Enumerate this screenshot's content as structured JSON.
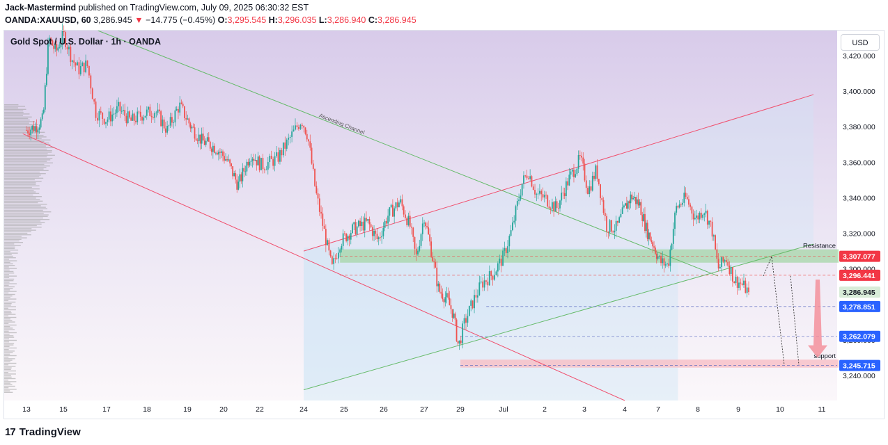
{
  "header": {
    "author": "Jack-Mastermind",
    "published": "published on TradingView.com, July 09, 2025 06:30:32 EST",
    "symbol": "OANDA:XAUUSD, 60",
    "last": "3,286.945",
    "change_arrow": "▼",
    "change": "−14.775 (−0.45%)",
    "o_label": "O:",
    "o": "3,295.545",
    "h_label": "H:",
    "h": "3,296.035",
    "l_label": "L:",
    "l": "3,286.940",
    "c_label": "C:",
    "c": "3,286.945"
  },
  "chart_title": "Gold Spot / U.S. Dollar · 1h · OANDA",
  "currency_button": "USD",
  "footer": {
    "logo_mark": "17",
    "brand": "TradingView"
  },
  "colors": {
    "up": "#26a69a",
    "down": "#ef5350",
    "resistance_zone": "#a5d6a7",
    "support_zone": "#f8bbc2",
    "red_line": "#f0506e",
    "green_line": "#66bb6a",
    "price_tag_red": "#f23645",
    "price_tag_blue": "#2962ff",
    "purple_bg": "#ddd3ef"
  },
  "chart_data": {
    "type": "candlestick",
    "title": "Gold Spot / U.S. Dollar · 1h · OANDA",
    "y_axis": {
      "ticks": [
        3240,
        3260,
        3280,
        3300,
        3320,
        3340,
        3360,
        3380,
        3400,
        3420
      ],
      "tick_labels": [
        "3,240.000",
        "3,260.000",
        "3,280.000",
        "3,300.000",
        "3,320.000",
        "3,340.000",
        "3,360.000",
        "3,380.000",
        "3,400.000",
        "3,420.000"
      ],
      "range": [
        3226,
        3434
      ]
    },
    "x_axis": {
      "labels": [
        "13",
        "15",
        "17",
        "18",
        "19",
        "20",
        "22",
        "24",
        "25",
        "26",
        "27",
        "29",
        "Jul",
        "2",
        "3",
        "4",
        "7",
        "8",
        "9",
        "10",
        "11"
      ],
      "positions": [
        0,
        1,
        2,
        3,
        4,
        5,
        6,
        7,
        8,
        9,
        10,
        11,
        12,
        13,
        14,
        15,
        16,
        17,
        18,
        19,
        20
      ]
    },
    "price_path": [
      [
        0,
        3378
      ],
      [
        0.25,
        3380
      ],
      [
        0.45,
        3384
      ],
      [
        0.6,
        3430
      ],
      [
        0.8,
        3422
      ],
      [
        1.0,
        3432
      ],
      [
        1.2,
        3418
      ],
      [
        1.35,
        3412
      ],
      [
        1.55,
        3415
      ],
      [
        1.75,
        3388
      ],
      [
        2.0,
        3384
      ],
      [
        2.3,
        3390
      ],
      [
        2.6,
        3383
      ],
      [
        2.9,
        3387
      ],
      [
        3.2,
        3389
      ],
      [
        3.5,
        3378
      ],
      [
        3.8,
        3392
      ],
      [
        4.1,
        3380
      ],
      [
        4.4,
        3372
      ],
      [
        4.8,
        3368
      ],
      [
        5.1,
        3361
      ],
      [
        5.4,
        3347
      ],
      [
        5.75,
        3365
      ],
      [
        6.05,
        3358
      ],
      [
        6.4,
        3362
      ],
      [
        6.75,
        3376
      ],
      [
        6.95,
        3384
      ],
      [
        7.1,
        3375
      ],
      [
        7.3,
        3343
      ],
      [
        7.5,
        3322
      ],
      [
        7.7,
        3300
      ],
      [
        7.9,
        3315
      ],
      [
        8.2,
        3322
      ],
      [
        8.6,
        3326
      ],
      [
        8.85,
        3316
      ],
      [
        9.1,
        3330
      ],
      [
        9.4,
        3338
      ],
      [
        9.65,
        3324
      ],
      [
        9.8,
        3306
      ],
      [
        10.0,
        3330
      ],
      [
        10.2,
        3310
      ],
      [
        10.4,
        3288
      ],
      [
        10.6,
        3284
      ],
      [
        10.8,
        3275
      ],
      [
        10.95,
        3256
      ],
      [
        11.1,
        3270
      ],
      [
        11.3,
        3282
      ],
      [
        11.5,
        3292
      ],
      [
        11.75,
        3297
      ],
      [
        12.0,
        3307
      ],
      [
        12.2,
        3322
      ],
      [
        12.45,
        3348
      ],
      [
        12.6,
        3355
      ],
      [
        12.8,
        3342
      ],
      [
        13.0,
        3340
      ],
      [
        13.3,
        3334
      ],
      [
        13.6,
        3350
      ],
      [
        13.9,
        3362
      ],
      [
        14.1,
        3344
      ],
      [
        14.3,
        3356
      ],
      [
        14.55,
        3324
      ],
      [
        14.8,
        3323
      ],
      [
        15.0,
        3334
      ],
      [
        15.2,
        3341
      ],
      [
        15.45,
        3336
      ],
      [
        15.65,
        3322
      ],
      [
        15.85,
        3314
      ],
      [
        16.05,
        3304
      ],
      [
        16.25,
        3302
      ],
      [
        16.45,
        3334
      ],
      [
        16.7,
        3340
      ],
      [
        16.95,
        3328
      ],
      [
        17.15,
        3334
      ],
      [
        17.35,
        3322
      ],
      [
        17.5,
        3300
      ],
      [
        17.7,
        3306
      ],
      [
        17.9,
        3294
      ],
      [
        18.05,
        3292
      ],
      [
        18.25,
        3286.945
      ]
    ],
    "candle_count": 470,
    "levels": [
      {
        "label": "3,307.077",
        "value": 3307.077,
        "tag_color": "red"
      },
      {
        "label": "3,300.000",
        "value": 3300,
        "tag_color": "none"
      },
      {
        "label": "3,296.441",
        "value": 3296.441,
        "tag_color": "red"
      },
      {
        "label": "3,286.945",
        "value": 3286.945,
        "tag_color": "green"
      },
      {
        "label": "3,278.851",
        "value": 3278.851,
        "tag_color": "blue"
      },
      {
        "label": "3,262.079",
        "value": 3262.079,
        "tag_color": "blue"
      },
      {
        "label": "3,245.715",
        "value": 3245.715,
        "tag_color": "blue"
      }
    ],
    "zones": [
      {
        "label": "Resistance",
        "from_x": 7.9,
        "to_x": 20.4,
        "low": 3303.5,
        "high": 3311,
        "color": "green"
      },
      {
        "label": "support",
        "from_x": 11.0,
        "to_x": 20.4,
        "low": 3244.5,
        "high": 3249,
        "color": "red"
      }
    ],
    "lines": [
      {
        "name": "Ascending Channel",
        "from": [
          1.8,
          3434
        ],
        "to": [
          17.5,
          3296
        ],
        "color": "green"
      },
      {
        "name": "lower-green",
        "from": [
          7.0,
          3232
        ],
        "to": [
          19.8,
          3314
        ],
        "color": "green"
      },
      {
        "name": "upper-red",
        "from": [
          7.0,
          3310
        ],
        "to": [
          19.8,
          3398
        ],
        "color": "red"
      },
      {
        "name": "lower-red",
        "from": [
          -0.1,
          3376
        ],
        "to": [
          15.0,
          3226
        ],
        "color": "red"
      }
    ]
  }
}
